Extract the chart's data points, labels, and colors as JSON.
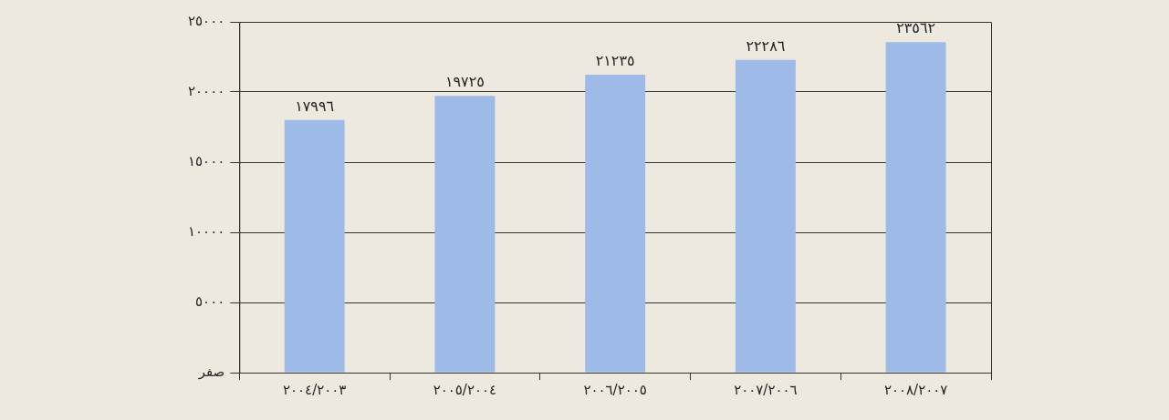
{
  "chart_data": {
    "type": "bar",
    "categories": [
      "٢٠٠٤/٢٠٠٣",
      "٢٠٠٥/٢٠٠٤",
      "٢٠٠٦/٢٠٠٥",
      "٢٠٠٧/٢٠٠٦",
      "٢٠٠٨/٢٠٠٧"
    ],
    "values": [
      17996,
      19725,
      21235,
      22286,
      23562
    ],
    "value_labels": [
      "١٧٩٩٦",
      "١٩٧٢٥",
      "٢١٢٣٥",
      "٢٢٢٨٦",
      "٢٣٥٦٢"
    ],
    "color": "#9dbbe6",
    "ylim": [
      0,
      25000
    ],
    "yticks": [
      {
        "value": 0,
        "label": "صفر"
      },
      {
        "value": 5000,
        "label": "٥٠٠٠"
      },
      {
        "value": 10000,
        "label": "١٠٠٠٠"
      },
      {
        "value": 15000,
        "label": "١٥٠٠٠"
      },
      {
        "value": 20000,
        "label": "٢٠٠٠٠"
      },
      {
        "value": 25000,
        "label": "٢٥٠٠٠"
      }
    ],
    "grid": "y",
    "legend": false
  }
}
